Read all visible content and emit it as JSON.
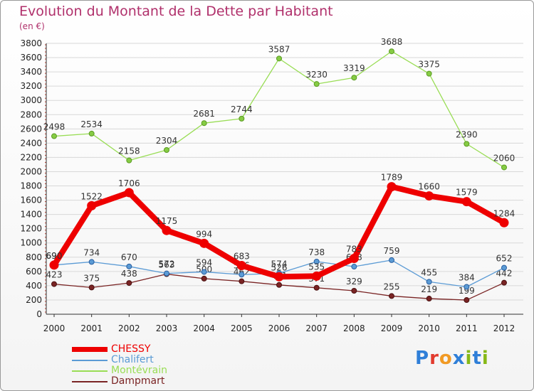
{
  "header": {
    "title": "Evolution du Montant de la Dette par Habitant",
    "subtitle": "(en €)"
  },
  "logo": {
    "text": "Proxiti",
    "letter_colors": [
      "#2f7fd8",
      "#e23b2e",
      "#f19a24",
      "#2f7fd8",
      "#86b817",
      "#2f7fd8",
      "#86b817"
    ]
  },
  "chart_data": {
    "type": "line",
    "title": "Evolution du Montant de la Dette par Habitant",
    "subtitle": "(en €)",
    "xlabel": "",
    "ylabel": "",
    "ylim": [
      0,
      3800
    ],
    "y_ticks": [
      0,
      200,
      400,
      600,
      800,
      1000,
      1200,
      1400,
      1600,
      1800,
      2000,
      2200,
      2400,
      2600,
      2800,
      3000,
      3200,
      3400,
      3600,
      3800
    ],
    "grid": true,
    "legend_position": "bottom-left",
    "categories": [
      "2000",
      "2001",
      "2002",
      "2003",
      "2004",
      "2005",
      "2006",
      "2007",
      "2008",
      "2009",
      "2010",
      "2011",
      "2012"
    ],
    "series": [
      {
        "name": "CHESSY",
        "color": "#ee0000",
        "values": [
          690,
          1522,
          1706,
          1175,
          994,
          683,
          526,
          535,
          783,
          1789,
          1660,
          1579,
          1284
        ],
        "labels": [
          "690",
          "1522",
          "1706",
          "1175",
          "994",
          "683",
          "526",
          "535",
          "783",
          "1789",
          "1660",
          "1579",
          "1284"
        ]
      },
      {
        "name": "Chalifert",
        "color": "#5b9bd5",
        "values": [
          690,
          734,
          670,
          572,
          594,
          556,
          574,
          738,
          668,
          759,
          455,
          384,
          652
        ],
        "labels": [
          "690",
          "734",
          "670",
          "572",
          "594",
          "556",
          "574",
          "738",
          "668",
          "759",
          "455",
          "384",
          "652"
        ]
      },
      {
        "name": "Montévrain",
        "color": "#99dd55",
        "values": [
          2498,
          2534,
          2158,
          2304,
          2681,
          2744,
          3587,
          3230,
          3319,
          3688,
          3375,
          2390,
          2060
        ],
        "labels": [
          "2498",
          "2534",
          "2158",
          "2304",
          "2681",
          "2744",
          "3587",
          "3230",
          "3319",
          "3688",
          "3375",
          "2390",
          "2060"
        ]
      },
      {
        "name": "Dampmart",
        "color": "#7a2424",
        "values": [
          423,
          375,
          438,
          563,
          500,
          462,
          411,
          371,
          329,
          255,
          219,
          199,
          442
        ],
        "labels": [
          "423",
          "375",
          "438",
          "563",
          "500",
          "462",
          "411",
          "371",
          "329",
          "255",
          "219",
          "199",
          "442"
        ]
      }
    ]
  }
}
